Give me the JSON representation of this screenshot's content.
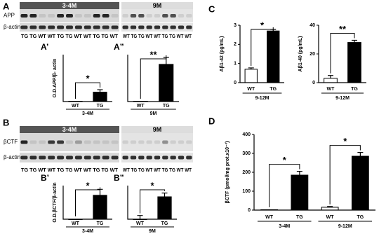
{
  "panels": [
    "A",
    "B",
    "C",
    "D"
  ],
  "blots": [
    {
      "groups": [
        "3-4M",
        "9M"
      ],
      "rows": [
        "APP",
        "β-actin"
      ],
      "lanes": [
        "TG TG WT WT TG TG WT WT TG TG WT",
        "WT TG TG WT WT TG TG WT WT"
      ]
    },
    {
      "groups": [
        "3-4M",
        "9M"
      ],
      "rows": [
        "βCTF",
        "β-actin"
      ],
      "lanes": [
        "TG TG WT WT TG TG WT WT TG TG WT",
        "WT TG TG WT WT TG TG WT WT"
      ]
    }
  ],
  "chart_data": [
    {
      "type": "bar",
      "panel": "A’",
      "ylabel": "O.D.APP/β- actin",
      "categories": [
        "WT",
        "TG"
      ],
      "values": [
        0.01,
        0.27
      ],
      "errors": [
        null,
        0.07
      ],
      "bar_colors": [
        "#ffffff",
        "#000000"
      ],
      "ylim": [
        0,
        1.35
      ],
      "groups": [
        "3-4M"
      ],
      "significance": [
        "*"
      ]
    },
    {
      "type": "bar",
      "panel": "A”",
      "categories": [
        "WT",
        "TG"
      ],
      "values": [
        0.01,
        1.07
      ],
      "errors": [
        null,
        0.2
      ],
      "bar_colors": [
        "#ffffff",
        "#000000"
      ],
      "ylim": [
        0,
        1.35
      ],
      "groups": [
        "9M"
      ],
      "significance": [
        "**"
      ]
    },
    {
      "type": "bar",
      "panel": "B’",
      "ylabel": "O.D.βCTF/β-actin",
      "categories": [
        "WT",
        "TG"
      ],
      "values": [
        0,
        0.32
      ],
      "errors": [
        null,
        0.08
      ],
      "bar_colors": [
        "#ffffff",
        "#000000"
      ],
      "ylim": [
        0,
        0.45
      ],
      "groups": [
        "3-4M"
      ],
      "significance": [
        "*"
      ]
    },
    {
      "type": "bar",
      "panel": "B”",
      "categories": [
        "WT",
        "TG"
      ],
      "values": [
        0,
        0.3
      ],
      "errors": [
        0.05,
        0.05
      ],
      "bar_colors": [
        "#ffffff",
        "#000000"
      ],
      "ylim": [
        0,
        0.45
      ],
      "groups": [
        "9M"
      ],
      "significance": [
        "*"
      ]
    },
    {
      "type": "bar",
      "ylabel": "Aβ1-42 (pg/mL)",
      "categories": [
        "WT",
        "TG"
      ],
      "values": [
        0.7,
        2.7
      ],
      "errors": [
        0.07,
        0.08
      ],
      "bar_colors": [
        "#ffffff",
        "#000000"
      ],
      "ylim": [
        0,
        3
      ],
      "yticks": [
        0,
        1,
        2,
        3
      ],
      "groups": [
        "9-12M"
      ],
      "significance": [
        "*"
      ]
    },
    {
      "type": "bar",
      "ylabel": "Aβ1-40 (pg/mL)",
      "categories": [
        "WT",
        "TG"
      ],
      "values": [
        3,
        28
      ],
      "errors": [
        2,
        1.5
      ],
      "bar_colors": [
        "#ffffff",
        "#000000"
      ],
      "ylim": [
        0,
        40
      ],
      "yticks": [
        0,
        20,
        40
      ],
      "groups": [
        "9-12M"
      ],
      "significance": [
        "**"
      ]
    },
    {
      "type": "bar",
      "ylabel": "βCTF (pmol/mg prot.x10⁻³)",
      "categories": [
        "WT",
        "TG",
        "WT",
        "TG"
      ],
      "values": [
        2,
        185,
        15,
        285
      ],
      "errors": [
        null,
        20,
        4,
        20
      ],
      "bar_colors": [
        "#ffffff",
        "#000000",
        "#ffffff",
        "#000000"
      ],
      "ylim": [
        0,
        400
      ],
      "yticks": [
        0,
        100,
        200,
        300,
        400
      ],
      "groups": [
        "3-4M",
        "9-12M"
      ],
      "significance": [
        "*",
        "*"
      ]
    }
  ]
}
